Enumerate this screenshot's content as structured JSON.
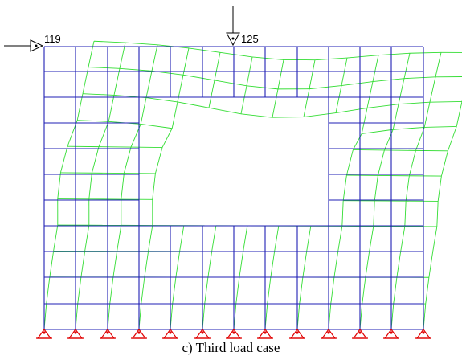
{
  "figure": {
    "caption": "c) Third load case",
    "loads": [
      {
        "node_label": "119",
        "direction": "horizontal"
      },
      {
        "node_label": "125",
        "direction": "vertical"
      }
    ],
    "colors": {
      "undeformed_mesh": "#1f1fb4",
      "deformed_mesh": "#33dd33",
      "supports": "#e00000",
      "load_arrows": "#000000"
    },
    "icons": [
      "support-triangle-icon",
      "load-arrow-icon"
    ]
  }
}
